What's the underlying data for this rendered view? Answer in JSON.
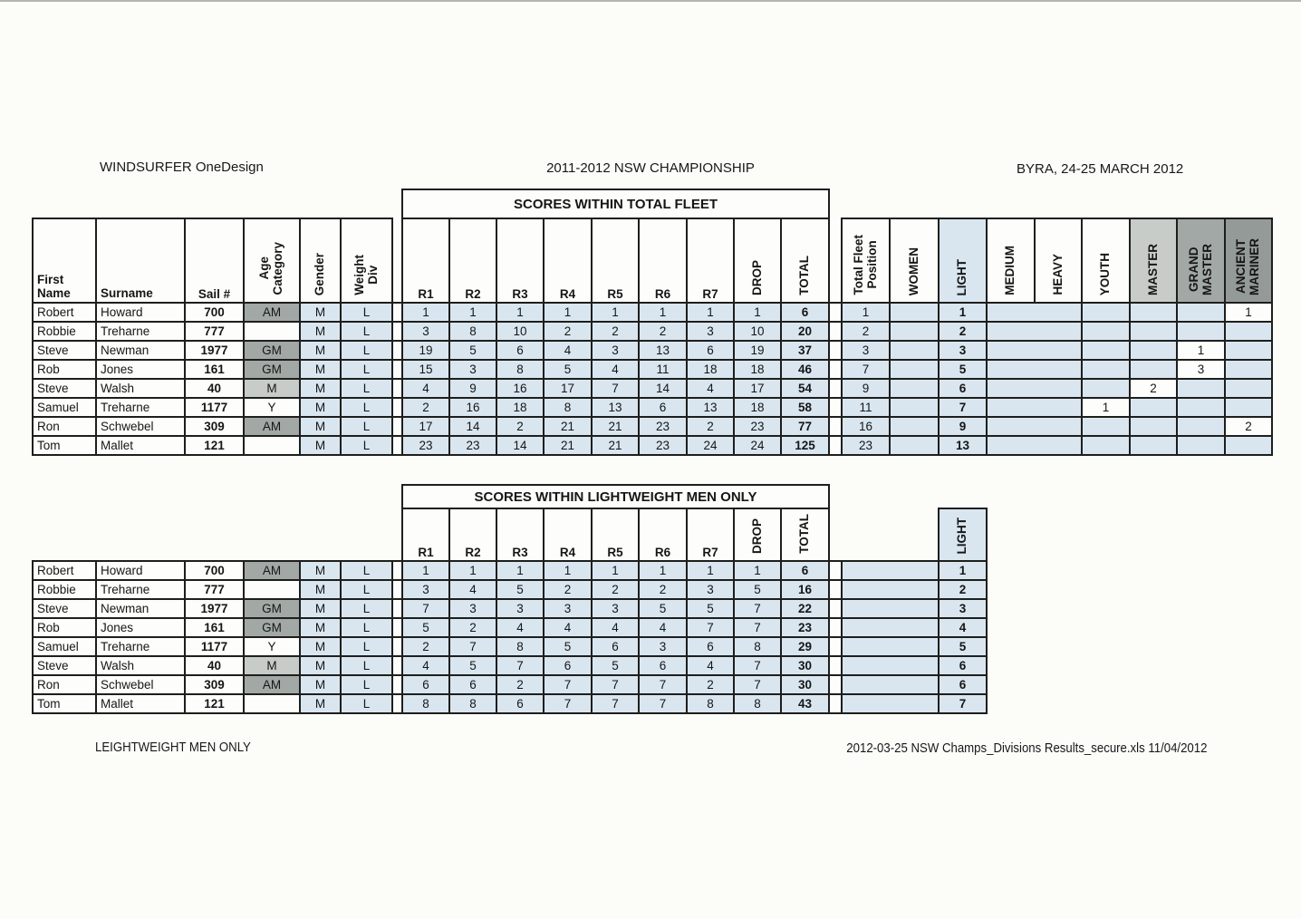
{
  "page": {
    "title_left": "WINDSURFER OneDesign",
    "title_center": "2011-2012 NSW CHAMPIONSHIP",
    "title_right": "BYRA, 24-25 MARCH 2012",
    "footer_left": "LEIGHTWEIGHT MEN ONLY",
    "footer_right": "2012-03-25 NSW Champs_Divisions Results_secure.xls  11/04/2012"
  },
  "colors": {
    "cell_blue": "#d9e6f0",
    "sail_yellow": "#f2e712",
    "age_gray_dark": "#a2a8a5",
    "age_gray_light": "#c7ccc9",
    "ancient_mariner_gray": "#949a97",
    "border_black": "#1e1e1c"
  },
  "columns": {
    "widths": [
      70,
      98,
      65,
      62,
      45,
      57,
      11,
      52,
      52,
      52,
      53,
      52,
      53,
      52,
      52,
      53,
      14,
      53,
      54,
      53,
      53,
      52,
      53,
      52,
      53,
      52
    ]
  },
  "table1": {
    "scores_title": "SCORES WITHIN TOTAL FLEET",
    "header": {
      "first_name": "First\nName",
      "surname": "Surname",
      "sail": "Sail #",
      "age": "Age\nCategory",
      "gender": "Gender",
      "weight": "Weight\nDiv",
      "races": [
        "R1",
        "R2",
        "R3",
        "R4",
        "R5",
        "R6",
        "R7"
      ],
      "drop": "DROP",
      "total": "TOTAL",
      "categories": [
        {
          "label": "Total Fleet\nPosition",
          "bg": "white"
        },
        {
          "label": "WOMEN",
          "bg": "white"
        },
        {
          "label": "LIGHT",
          "bg": "blue"
        },
        {
          "label": "MEDIUM",
          "bg": "white"
        },
        {
          "label": "HEAVY",
          "bg": "white"
        },
        {
          "label": "YOUTH",
          "bg": "white"
        },
        {
          "label": "MASTER",
          "bg": "gray1"
        },
        {
          "label": "GRAND\nMASTER",
          "bg": "gray2"
        },
        {
          "label": "ANCIENT\nMARINER",
          "bg": "gray3"
        }
      ]
    },
    "rows": [
      {
        "first": "Robert",
        "surname": "Howard",
        "sail": "700",
        "sail_bg": "white",
        "age": "AM",
        "age_bg": "gray2",
        "races": [
          "1",
          "1",
          "1",
          "1",
          "1",
          "1",
          "1"
        ],
        "drop": "1",
        "total": "6",
        "fleet": "1",
        "women": "",
        "light": "1",
        "medium_heavy": "",
        "youth": "",
        "master": "",
        "grand": "",
        "ancient": "1"
      },
      {
        "first": "Robbie",
        "surname": "Treharne",
        "sail": "777",
        "sail_bg": "yellow",
        "age": "",
        "age_bg": "white",
        "races": [
          "3",
          "8",
          "10",
          "2",
          "2",
          "2",
          "3"
        ],
        "drop": "10",
        "total": "20",
        "fleet": "2",
        "women": "",
        "light": "2",
        "medium_heavy": "",
        "youth": "",
        "master": "",
        "grand": "",
        "ancient": ""
      },
      {
        "first": "Steve",
        "surname": "Newman",
        "sail": "1977",
        "sail_bg": "yellow",
        "age": "GM",
        "age_bg": "gray2",
        "races": [
          "19",
          "5",
          "6",
          "4",
          "3",
          "13",
          "6"
        ],
        "drop": "19",
        "total": "37",
        "fleet": "3",
        "women": "",
        "light": "3",
        "medium_heavy": "",
        "youth": "",
        "master": "",
        "grand": "1",
        "ancient": ""
      },
      {
        "first": "Rob",
        "surname": "Jones",
        "sail": "161",
        "sail_bg": "yellow",
        "age": "GM",
        "age_bg": "gray2",
        "races": [
          "15",
          "3",
          "8",
          "5",
          "4",
          "11",
          "18"
        ],
        "drop": "18",
        "total": "46",
        "fleet": "7",
        "women": "",
        "light": "5",
        "medium_heavy": "",
        "youth": "",
        "master": "",
        "grand": "3",
        "ancient": ""
      },
      {
        "first": "Steve",
        "surname": "Walsh",
        "sail": "40",
        "sail_bg": "yellow",
        "age": "M",
        "age_bg": "gray1",
        "races": [
          "4",
          "9",
          "16",
          "17",
          "7",
          "14",
          "4"
        ],
        "drop": "17",
        "total": "54",
        "fleet": "9",
        "women": "",
        "light": "6",
        "medium_heavy": "",
        "youth": "",
        "master": "2",
        "grand": "",
        "ancient": ""
      },
      {
        "first": "Samuel",
        "surname": "Treharne",
        "sail": "1177",
        "sail_bg": "yellow",
        "age": "Y",
        "age_bg": "white",
        "races": [
          "2",
          "16",
          "18",
          "8",
          "13",
          "6",
          "13"
        ],
        "drop": "18",
        "total": "58",
        "fleet": "11",
        "women": "",
        "light": "7",
        "medium_heavy": "",
        "youth": "1",
        "master": "",
        "grand": "",
        "ancient": ""
      },
      {
        "first": "Ron",
        "surname": "Schwebel",
        "sail": "309",
        "sail_bg": "white",
        "age": "AM",
        "age_bg": "gray2",
        "races": [
          "17",
          "14",
          "2",
          "21",
          "21",
          "23",
          "2"
        ],
        "drop": "23",
        "total": "77",
        "fleet": "16",
        "women": "",
        "light": "9",
        "medium_heavy": "",
        "youth": "",
        "master": "",
        "grand": "",
        "ancient": "2"
      },
      {
        "first": "Tom",
        "surname": "Mallet",
        "sail": "121",
        "sail_bg": "white",
        "age": "",
        "age_bg": "white",
        "races": [
          "23",
          "23",
          "14",
          "21",
          "21",
          "23",
          "24"
        ],
        "drop": "24",
        "total": "125",
        "fleet": "23",
        "women": "",
        "light": "13",
        "medium_heavy": "",
        "youth": "",
        "master": "",
        "grand": "",
        "ancient": ""
      }
    ]
  },
  "table2": {
    "scores_title": "SCORES WITHIN LIGHTWEIGHT MEN ONLY",
    "header": {
      "races": [
        "R1",
        "R2",
        "R3",
        "R4",
        "R5",
        "R6",
        "R7"
      ],
      "drop": "DROP",
      "total": "TOTAL",
      "light": "LIGHT"
    },
    "rows": [
      {
        "first": "Robert",
        "surname": "Howard",
        "sail": "700",
        "sail_bg": "white",
        "age": "AM",
        "age_bg": "gray2",
        "races": [
          "1",
          "1",
          "1",
          "1",
          "1",
          "1",
          "1"
        ],
        "drop": "1",
        "total": "6",
        "light": "1"
      },
      {
        "first": "Robbie",
        "surname": "Treharne",
        "sail": "777",
        "sail_bg": "yellow",
        "age": "",
        "age_bg": "white",
        "races": [
          "3",
          "4",
          "5",
          "2",
          "2",
          "2",
          "3"
        ],
        "drop": "5",
        "total": "16",
        "light": "2"
      },
      {
        "first": "Steve",
        "surname": "Newman",
        "sail": "1977",
        "sail_bg": "yellow",
        "age": "GM",
        "age_bg": "gray2",
        "races": [
          "7",
          "3",
          "3",
          "3",
          "3",
          "5",
          "5"
        ],
        "drop": "7",
        "total": "22",
        "light": "3"
      },
      {
        "first": "Rob",
        "surname": "Jones",
        "sail": "161",
        "sail_bg": "yellow",
        "age": "GM",
        "age_bg": "gray2",
        "races": [
          "5",
          "2",
          "4",
          "4",
          "4",
          "4",
          "7"
        ],
        "drop": "7",
        "total": "23",
        "light": "4"
      },
      {
        "first": "Samuel",
        "surname": "Treharne",
        "sail": "1177",
        "sail_bg": "yellow",
        "age": "Y",
        "age_bg": "white",
        "races": [
          "2",
          "7",
          "8",
          "5",
          "6",
          "3",
          "6"
        ],
        "drop": "8",
        "total": "29",
        "light": "5"
      },
      {
        "first": "Steve",
        "surname": "Walsh",
        "sail": "40",
        "sail_bg": "yellow",
        "age": "M",
        "age_bg": "gray1",
        "races": [
          "4",
          "5",
          "7",
          "6",
          "5",
          "6",
          "4"
        ],
        "drop": "7",
        "total": "30",
        "light": "6"
      },
      {
        "first": "Ron",
        "surname": "Schwebel",
        "sail": "309",
        "sail_bg": "white",
        "age": "AM",
        "age_bg": "gray2",
        "races": [
          "6",
          "6",
          "2",
          "7",
          "7",
          "7",
          "2"
        ],
        "drop": "7",
        "total": "30",
        "light": "6"
      },
      {
        "first": "Tom",
        "surname": "Mallet",
        "sail": "121",
        "sail_bg": "white",
        "age": "",
        "age_bg": "white",
        "races": [
          "8",
          "8",
          "6",
          "7",
          "7",
          "7",
          "8"
        ],
        "drop": "8",
        "total": "43",
        "light": "7"
      }
    ]
  }
}
